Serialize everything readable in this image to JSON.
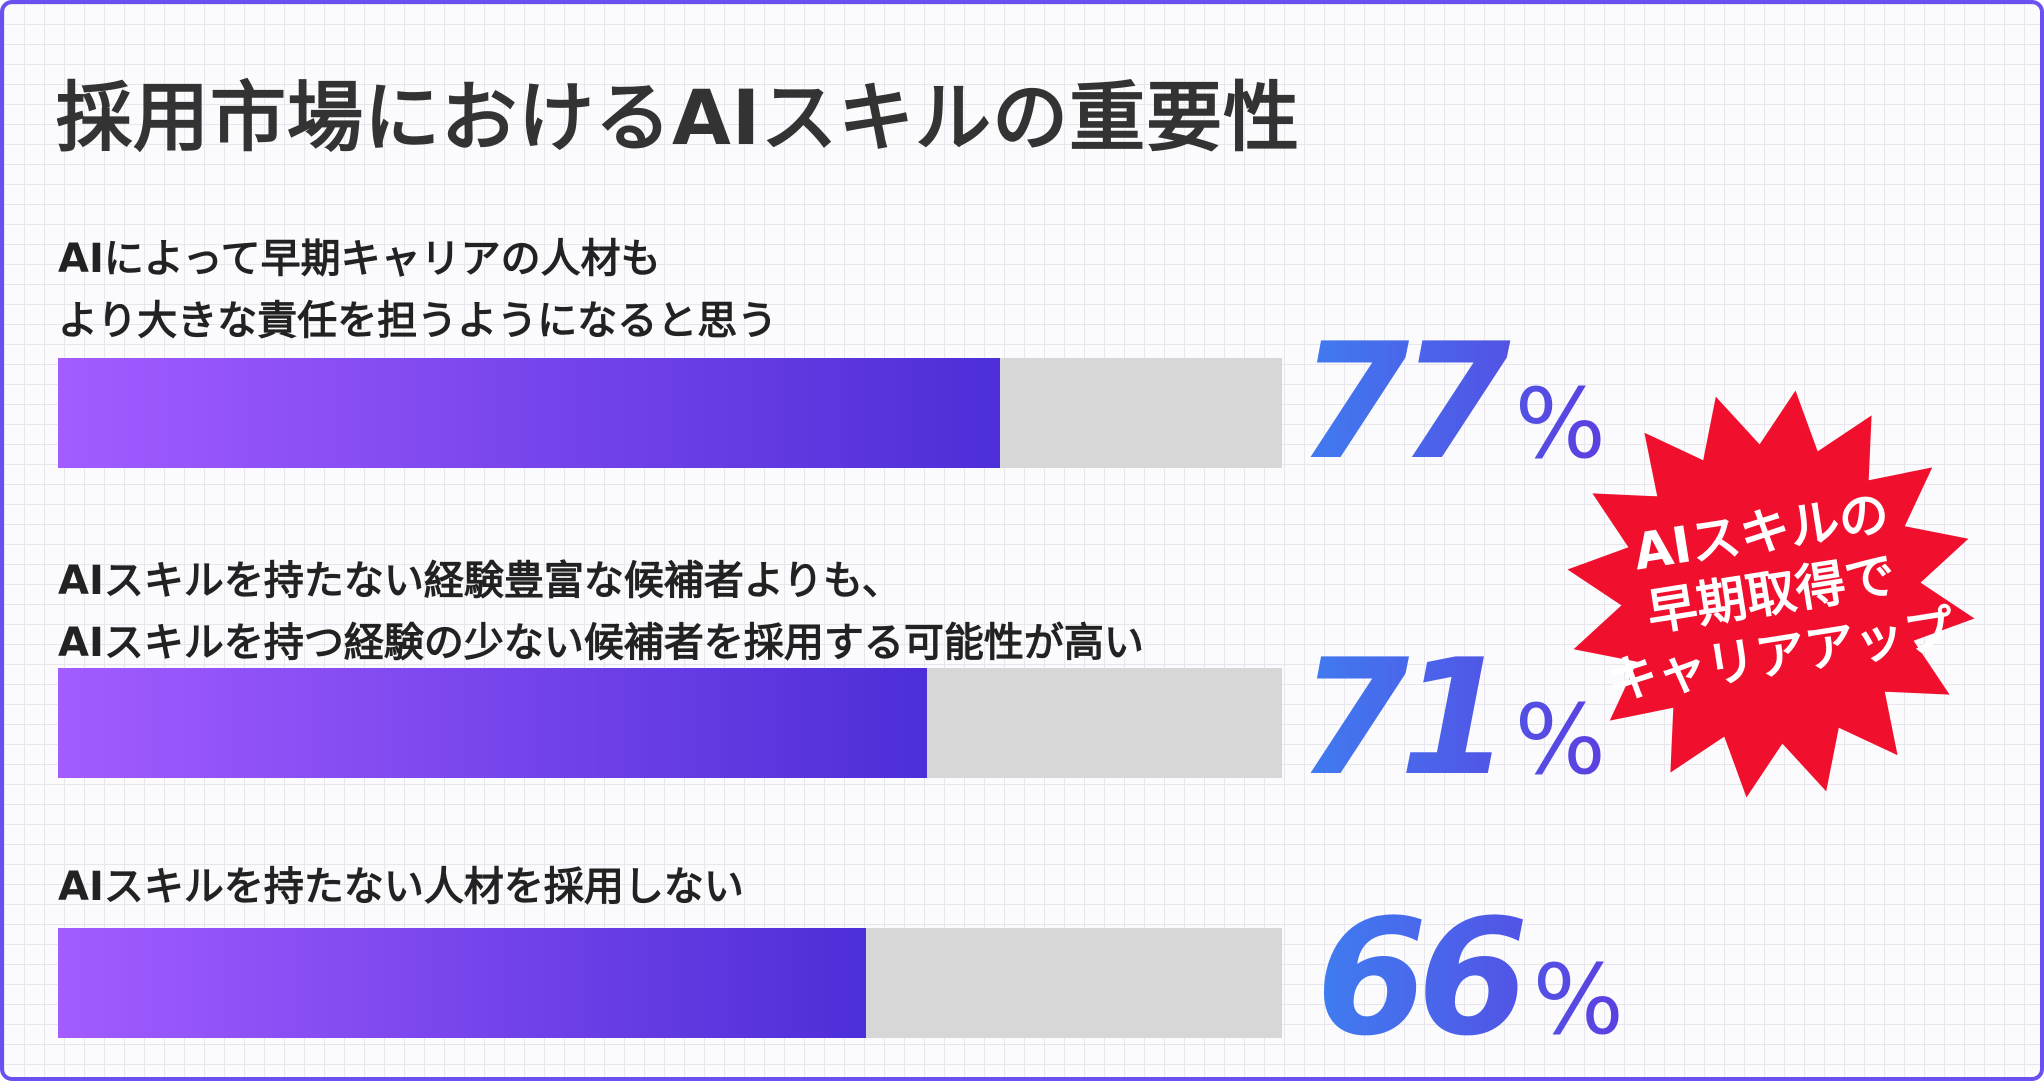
{
  "chart_data": {
    "type": "bar",
    "title": "採用市場におけるAIスキルの重要性",
    "categories": [
      [
        "AIによって早期キャリアの人材も",
        "より大きな責任を担うようになると思う"
      ],
      [
        "AIスキルを持たない経験豊富な候補者よりも、",
        "AIスキルを持つ経験の少ない候補者を採用する可能性が高い"
      ],
      [
        "AIスキルを持たない人材を採用しない"
      ]
    ],
    "values": [
      77,
      71,
      66
    ],
    "unit": "%",
    "ylim": [
      0,
      100
    ],
    "grid": false,
    "legend": "none"
  },
  "badge": {
    "lines": [
      "AIスキルの",
      "早期取得で",
      "キャリアアップ"
    ]
  },
  "colors": {
    "frame": "#6c4ff0",
    "bar_gradient_start": "#a25cff",
    "bar_gradient_end": "#4d2ed8",
    "track": "#d7d7d7",
    "percent_gradient_start": "#3f7df0",
    "percent_gradient_end": "#5b3fe0",
    "badge": "#f0102e"
  }
}
